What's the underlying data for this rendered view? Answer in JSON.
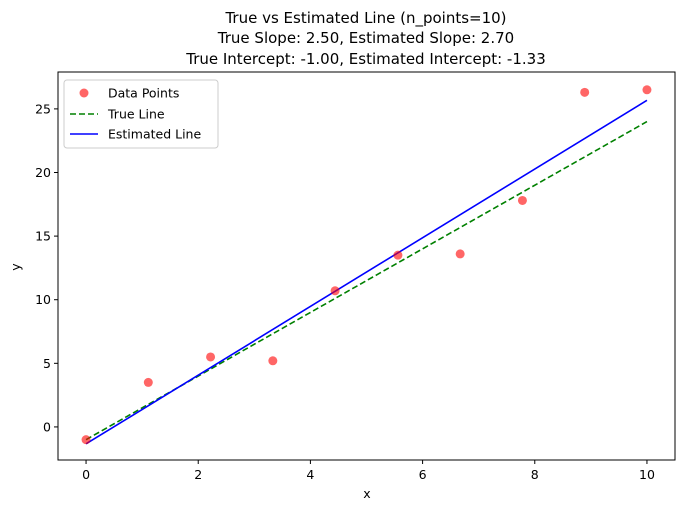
{
  "chart_data": {
    "type": "scatter",
    "title_lines": [
      "True vs Estimated Line (n_points=10)",
      "True Slope: 2.50, Estimated Slope: 2.70",
      "True Intercept: -1.00, Estimated Intercept: -1.33"
    ],
    "xlabel": "x",
    "ylabel": "y",
    "xlim": [
      -0.5,
      10.5
    ],
    "ylim": [
      -2.6,
      27.9
    ],
    "xticks": [
      0,
      2,
      4,
      6,
      8,
      10
    ],
    "yticks": [
      0,
      5,
      10,
      15,
      20,
      25
    ],
    "grid": false,
    "legend_position": "upper left",
    "series": [
      {
        "name": "Data Points",
        "kind": "scatter",
        "color": "#ff0000",
        "alpha": 0.6,
        "x": [
          0,
          1.11,
          2.22,
          3.33,
          4.44,
          5.56,
          6.67,
          7.78,
          8.89,
          10
        ],
        "y": [
          -1.0,
          3.5,
          5.5,
          5.2,
          10.7,
          13.5,
          13.6,
          17.8,
          26.3,
          26.5
        ]
      },
      {
        "name": "True Line",
        "kind": "line",
        "style": "dashed",
        "color": "#008000",
        "x": [
          0,
          10
        ],
        "y": [
          -1.0,
          24.0
        ]
      },
      {
        "name": "Estimated Line",
        "kind": "line",
        "style": "solid",
        "color": "#0000ff",
        "x": [
          0,
          10
        ],
        "y": [
          -1.33,
          25.67
        ]
      }
    ]
  }
}
